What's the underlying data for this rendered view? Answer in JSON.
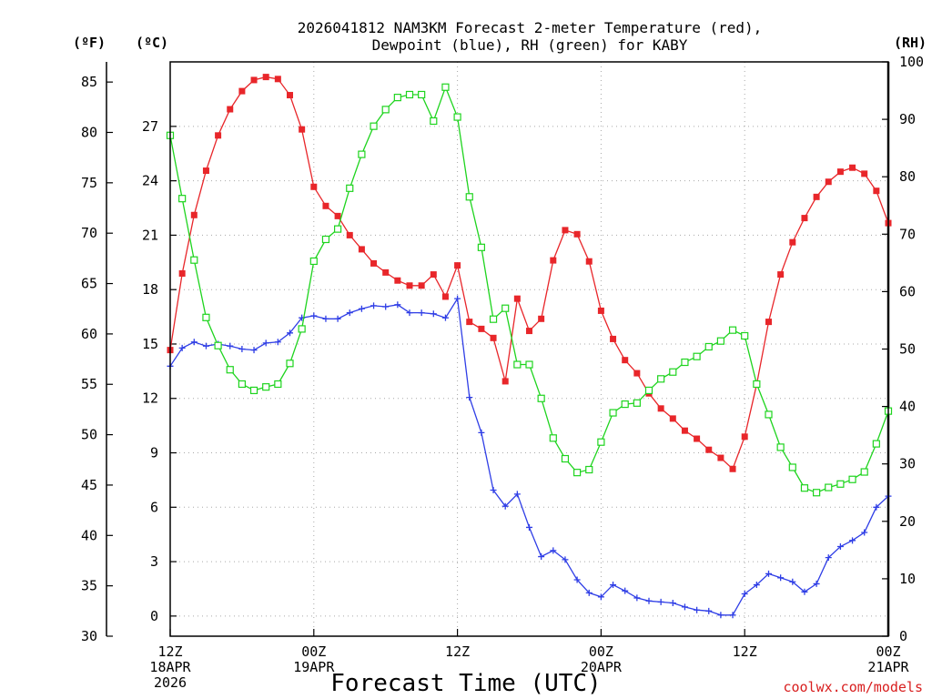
{
  "chart_data": {
    "type": "line",
    "title_lines": [
      "2026041812 NAM3KM Forecast 2-meter Temperature (red),",
      "Dewpoint (blue), RH (green) for KABY"
    ],
    "station": "KABY",
    "model": "NAM3KM",
    "init": "2026041812",
    "xlabel": "Forecast Time (UTC)",
    "credit": "coolwx.com/models",
    "unit_labels": {
      "fahrenheit": "(ºF)",
      "celsius": "(ºC)",
      "rh": "(RH)"
    },
    "x_range_hours": [
      0,
      60
    ],
    "x_ticks": [
      {
        "hour": 0,
        "lines": [
          "12Z",
          "18APR",
          "2026"
        ]
      },
      {
        "hour": 12,
        "lines": [
          "00Z",
          "19APR"
        ]
      },
      {
        "hour": 24,
        "lines": [
          "12Z"
        ]
      },
      {
        "hour": 36,
        "lines": [
          "00Z",
          "20APR"
        ]
      },
      {
        "hour": 48,
        "lines": [
          "12Z"
        ]
      },
      {
        "hour": 60,
        "lines": [
          "00Z",
          "21APR"
        ]
      }
    ],
    "y_fahrenheit": {
      "range": [
        30,
        87
      ],
      "ticks": [
        "30",
        "35",
        "40",
        "45",
        "50",
        "55",
        "60",
        "65",
        "70",
        "75",
        "80",
        "85"
      ]
    },
    "y_celsius": {
      "range": [
        -1.111,
        30.556
      ],
      "ticks": [
        "0",
        "3",
        "6",
        "9",
        "12",
        "15",
        "18",
        "21",
        "24",
        "27"
      ]
    },
    "y_rh": {
      "range": [
        0,
        100
      ],
      "ticks": [
        "0",
        "10",
        "20",
        "30",
        "40",
        "50",
        "60",
        "70",
        "80",
        "90",
        "100"
      ]
    },
    "series": [
      {
        "name": "2-meter Temperature",
        "unit": "ºF",
        "axis": "fahrenheit",
        "color": "#e8262a",
        "marker": "filled-square",
        "hours": [
          0,
          1,
          2,
          3,
          4,
          5,
          6,
          7,
          8,
          9,
          10,
          11,
          12,
          13,
          14,
          15,
          16,
          17,
          18,
          19,
          20,
          21,
          22,
          23,
          24,
          25,
          26,
          27,
          28,
          29,
          30,
          31,
          32,
          33,
          34,
          35,
          36,
          37,
          38,
          39,
          40,
          41,
          42,
          43,
          44,
          45,
          46,
          47,
          48,
          49,
          50,
          51,
          52,
          53,
          54,
          55,
          56,
          57,
          58,
          59,
          60
        ],
        "values": [
          58.4,
          66.0,
          71.8,
          76.2,
          79.7,
          82.3,
          84.1,
          85.2,
          85.5,
          85.3,
          83.7,
          80.3,
          74.6,
          72.7,
          71.7,
          69.8,
          68.4,
          67.0,
          66.1,
          65.3,
          64.8,
          64.8,
          65.9,
          63.7,
          66.8,
          61.2,
          60.5,
          59.6,
          55.3,
          63.5,
          60.3,
          61.5,
          67.3,
          70.3,
          69.9,
          67.2,
          62.3,
          59.5,
          57.4,
          56.1,
          54.1,
          52.6,
          51.6,
          50.4,
          49.6,
          48.5,
          47.7,
          46.6,
          49.8,
          55.0,
          61.2,
          65.9,
          69.1,
          71.5,
          73.6,
          75.1,
          76.1,
          76.5,
          75.9,
          74.2,
          71.0
        ]
      },
      {
        "name": "Dewpoint",
        "unit": "ºF",
        "axis": "fahrenheit",
        "color": "#2f3ee6",
        "marker": "plus",
        "hours": [
          0,
          1,
          2,
          3,
          4,
          5,
          6,
          7,
          8,
          9,
          10,
          11,
          12,
          13,
          14,
          15,
          16,
          17,
          18,
          19,
          20,
          21,
          22,
          23,
          24,
          25,
          26,
          27,
          28,
          29,
          30,
          31,
          32,
          33,
          34,
          35,
          36,
          37,
          38,
          39,
          40,
          41,
          42,
          43,
          44,
          45,
          46,
          47,
          48,
          49,
          50,
          51,
          52,
          53,
          54,
          55,
          56,
          57,
          58,
          59,
          60
        ],
        "values": [
          56.8,
          58.6,
          59.2,
          58.8,
          59.0,
          58.8,
          58.5,
          58.4,
          59.1,
          59.2,
          60.1,
          61.6,
          61.8,
          61.5,
          61.5,
          62.1,
          62.5,
          62.8,
          62.7,
          62.9,
          62.1,
          62.1,
          62.0,
          61.6,
          63.5,
          53.7,
          50.2,
          44.5,
          42.9,
          44.1,
          40.8,
          37.9,
          38.5,
          37.6,
          35.6,
          34.3,
          33.9,
          35.1,
          34.5,
          33.8,
          33.5,
          33.4,
          33.3,
          32.9,
          32.6,
          32.5,
          32.1,
          32.1,
          34.2,
          35.1,
          36.2,
          35.8,
          35.4,
          34.4,
          35.2,
          37.8,
          38.9,
          39.5,
          40.3,
          42.8,
          43.9
        ]
      },
      {
        "name": "Relative Humidity",
        "unit": "%",
        "axis": "rh",
        "color": "#1ed41e",
        "marker": "open-square",
        "hours": [
          0,
          1,
          2,
          3,
          4,
          5,
          6,
          7,
          8,
          9,
          10,
          11,
          12,
          13,
          14,
          15,
          16,
          17,
          18,
          19,
          20,
          21,
          22,
          23,
          24,
          25,
          26,
          27,
          28,
          29,
          30,
          31,
          32,
          33,
          34,
          35,
          36,
          37,
          38,
          39,
          40,
          41,
          42,
          43,
          44,
          45,
          46,
          47,
          48,
          49,
          50,
          51,
          52,
          53,
          54,
          55,
          56,
          57,
          58,
          59,
          60
        ],
        "values": [
          87.2,
          76.2,
          65.5,
          55.5,
          50.6,
          46.4,
          43.9,
          42.8,
          43.4,
          43.9,
          47.5,
          53.5,
          65.3,
          69.1,
          70.9,
          78.0,
          83.9,
          88.8,
          91.7,
          93.8,
          94.3,
          94.3,
          89.7,
          95.6,
          90.4,
          76.5,
          67.7,
          55.2,
          57.1,
          47.3,
          47.3,
          41.4,
          34.5,
          30.9,
          28.5,
          29.0,
          33.8,
          38.9,
          40.4,
          40.6,
          42.8,
          44.8,
          46.0,
          47.7,
          48.7,
          50.4,
          51.4,
          53.3,
          52.3,
          43.9,
          38.6,
          32.9,
          29.4,
          25.8,
          25.0,
          25.9,
          26.5,
          27.3,
          28.6,
          33.5,
          39.2
        ]
      }
    ]
  }
}
